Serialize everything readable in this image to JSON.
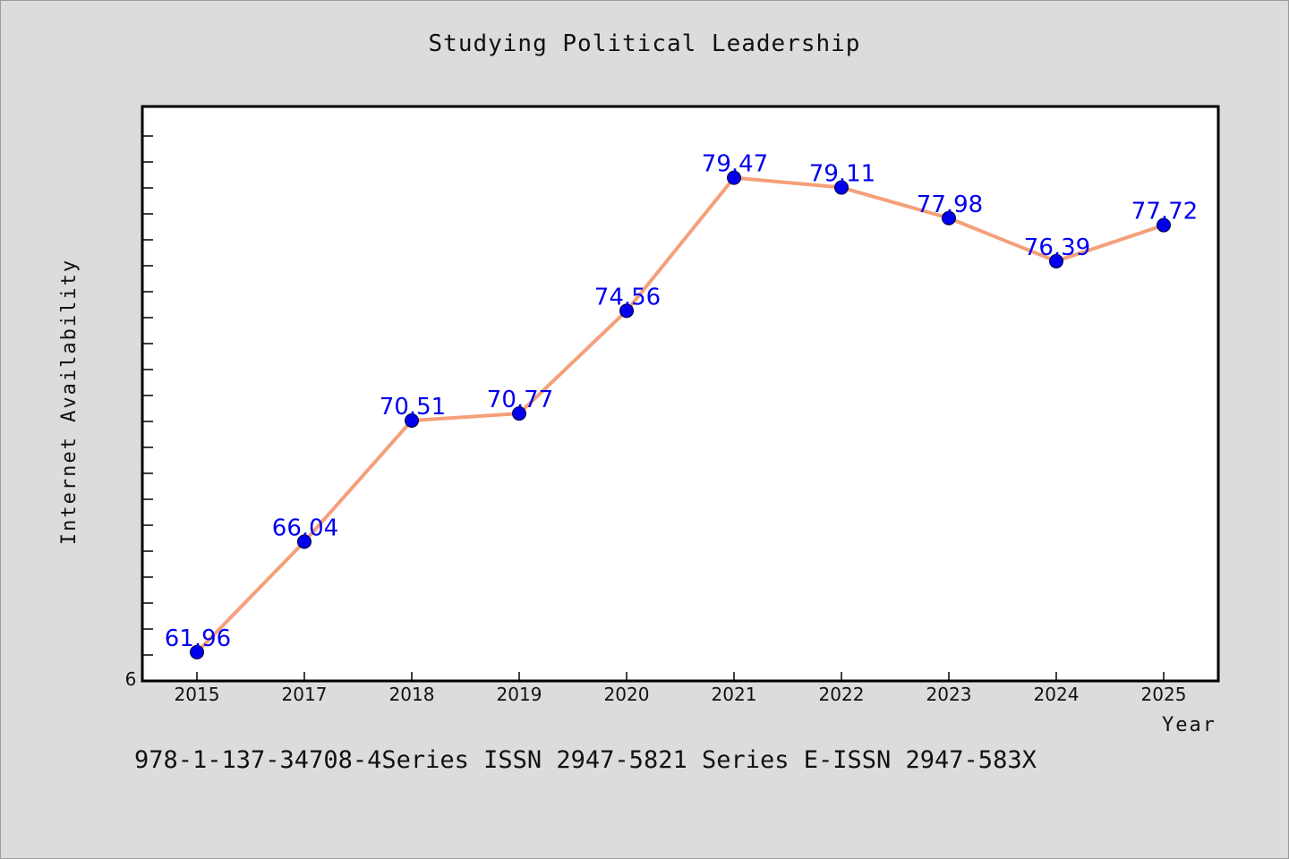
{
  "chart_data": {
    "type": "line",
    "title": "Studying Political Leadership",
    "xlabel": "Year",
    "ylabel": "Internet Availability",
    "categories": [
      "2015",
      "2017",
      "2018",
      "2019",
      "2020",
      "2021",
      "2022",
      "2023",
      "2024",
      "2025"
    ],
    "values": [
      61.96,
      66.04,
      70.51,
      70.77,
      74.56,
      79.47,
      79.11,
      77.98,
      76.39,
      77.72
    ],
    "data_labels": [
      "61.96",
      "66.04",
      "70.51",
      "70.77",
      "74.56",
      "79.47",
      "79.11",
      "77.98",
      "76.39",
      "77.72"
    ],
    "y_tick_labels": [
      "6"
    ],
    "ylim": [
      60.9,
      82.1
    ],
    "grid": false,
    "legend": "none",
    "line_color": "#f4a07a",
    "marker_color": "#0000ee",
    "label_color": "#0000ee",
    "plot_background": "#ffffff"
  },
  "footer": {
    "text": "978-1-137-34708-4Series ISSN 2947-5821 Series E-ISSN 2947-583X"
  },
  "colors": {
    "page_background": "#dcdcdc"
  }
}
